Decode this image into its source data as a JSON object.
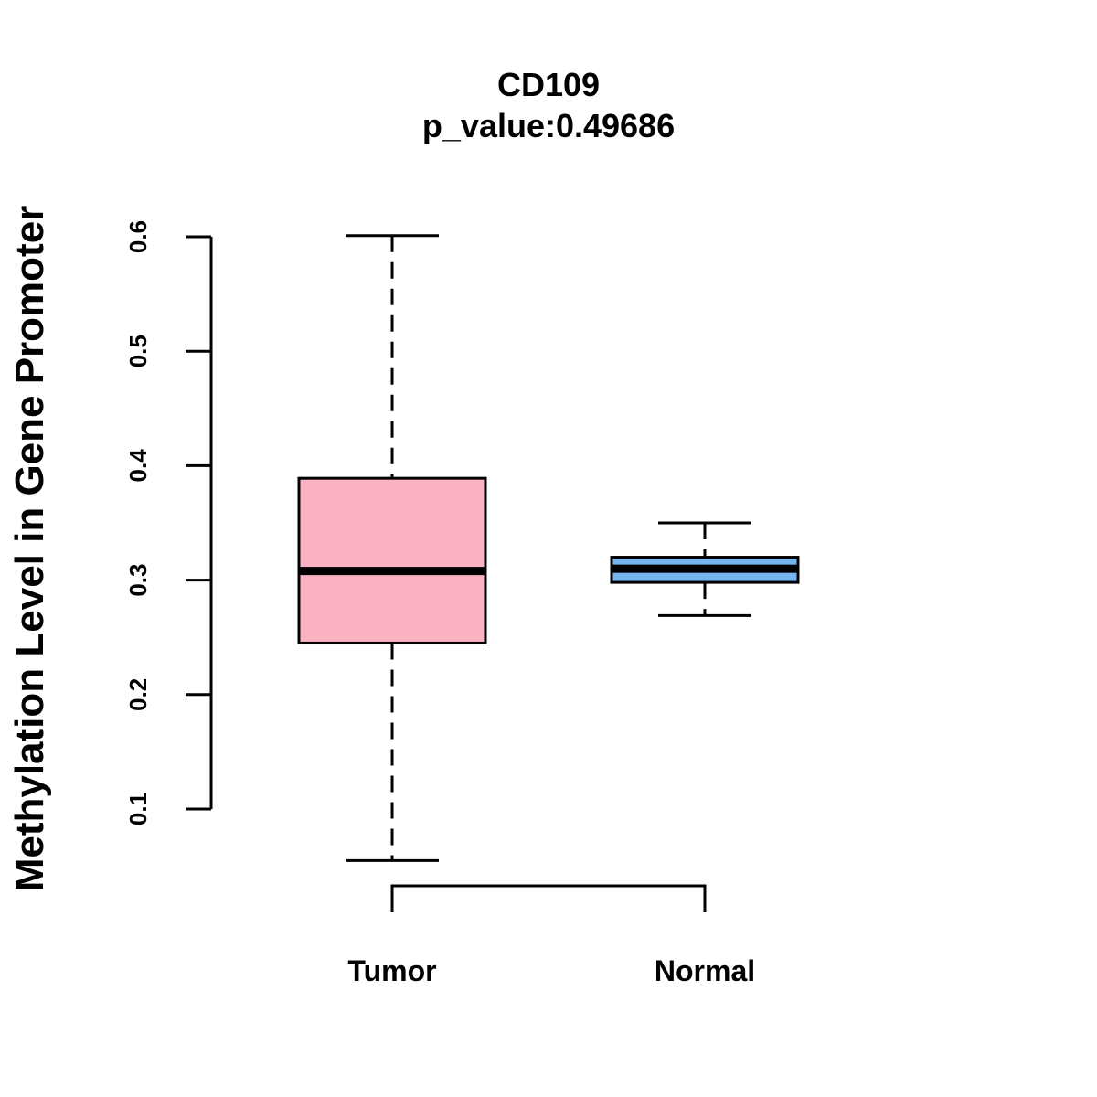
{
  "chart_data": {
    "type": "boxplot",
    "title": "CD109",
    "subtitle": "p_value:0.49686",
    "xlabel": "",
    "ylabel": "Methylation Level in Gene Promoter",
    "ylim": [
      0.1,
      0.6
    ],
    "yticks": [
      "0.1",
      "0.2",
      "0.3",
      "0.4",
      "0.5",
      "0.6"
    ],
    "grid": false,
    "categories": [
      "Tumor",
      "Normal"
    ],
    "boxes": [
      {
        "name": "Tumor",
        "min": 0.055,
        "q1": 0.245,
        "median": 0.308,
        "q3": 0.389,
        "max": 0.601,
        "color": "#fbb2c3"
      },
      {
        "name": "Normal",
        "min": 0.269,
        "q1": 0.298,
        "median": 0.31,
        "q3": 0.32,
        "max": 0.35,
        "color": "#76b6f0"
      }
    ],
    "comparison_bracket": [
      "Tumor",
      "Normal"
    ]
  }
}
